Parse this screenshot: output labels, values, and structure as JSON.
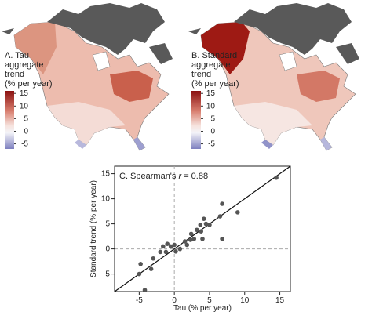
{
  "maps": [
    {
      "label_lines": [
        "A. Tau",
        "aggregate",
        "trend",
        "(% per year)"
      ],
      "legend_ticks": [
        15,
        10,
        5,
        0,
        -5
      ],
      "legend_lim": [
        -7,
        16
      ]
    },
    {
      "label_lines": [
        "B. Standard",
        "aggregate",
        "trend",
        "(% per year)"
      ],
      "legend_ticks": [
        15,
        10,
        5,
        0,
        -5
      ],
      "legend_lim": [
        -7,
        16
      ]
    }
  ],
  "chart_data": {
    "type": "scatter",
    "annotation": [
      "C. Spearman's ",
      "r",
      " = 0.88"
    ],
    "x_label": "Tau (% per year)",
    "y_label": "Standard trend (% per year)",
    "xlim": [
      -8.5,
      16.5
    ],
    "ylim": [
      -8.5,
      16.5
    ],
    "xticks": [
      -5,
      0,
      5,
      10,
      15
    ],
    "yticks": [
      -5,
      0,
      5,
      10,
      15
    ],
    "color": "#555555",
    "x": [
      14.5,
      6.8,
      9,
      6.5,
      6.8,
      5,
      4.2,
      3.7,
      3.2,
      2.4,
      2.8,
      4,
      4.5,
      1.8,
      0.8,
      0.2,
      0,
      -1.2,
      -1.6,
      -1,
      -0.5,
      -2,
      1.5,
      -3,
      -4.8,
      -3.3,
      -5,
      -4.2,
      3.8,
      2.3
    ],
    "y": [
      14.2,
      9,
      7.3,
      6.5,
      2,
      4.8,
      6,
      4.8,
      3.8,
      3,
      2,
      2,
      5,
      0.8,
      0,
      -0.5,
      0.8,
      -0.6,
      0.5,
      1,
      0.5,
      -0.6,
      1.5,
      -1.9,
      -3,
      -4,
      -5,
      -8.2,
      3.5,
      1.8
    ]
  }
}
